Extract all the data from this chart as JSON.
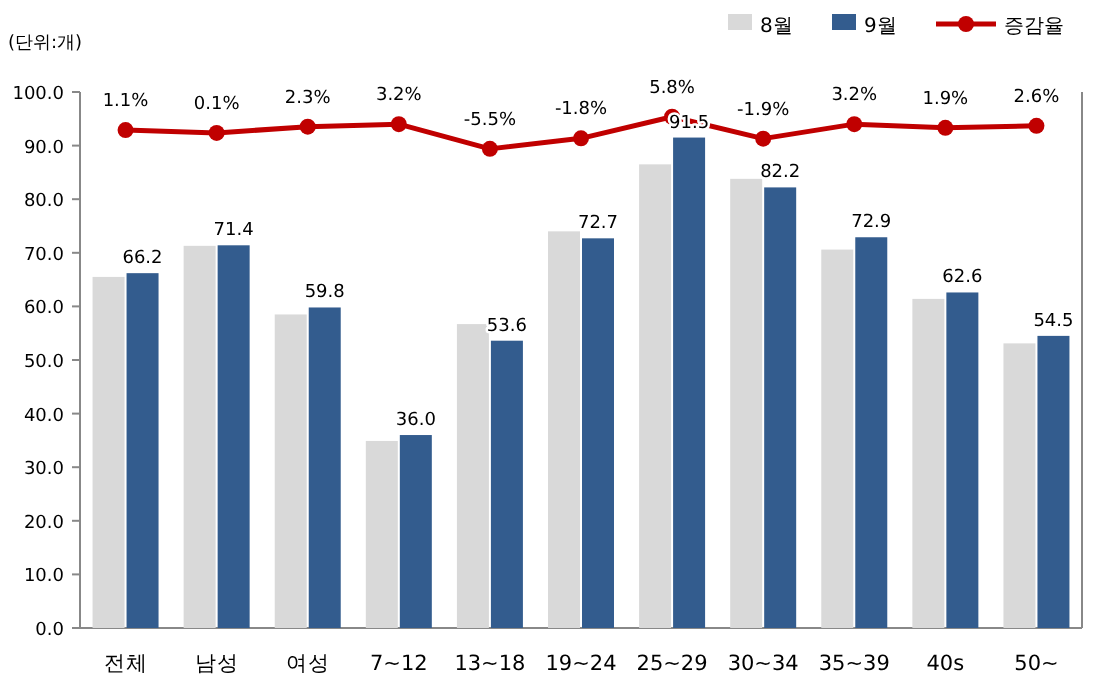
{
  "chart_data": {
    "type": "bar",
    "ylabel": "(단위:개)",
    "categories": [
      "전체",
      "남성",
      "여성",
      "7~12",
      "13~18",
      "19~24",
      "25~29",
      "30~34",
      "35~39",
      "40s",
      "50~"
    ],
    "series": [
      {
        "name": "8월",
        "color": "#d9d9d9",
        "values": [
          65.5,
          71.3,
          58.5,
          34.9,
          56.7,
          74.0,
          86.5,
          83.8,
          70.6,
          61.4,
          53.1
        ]
      },
      {
        "name": "9월",
        "color": "#335c8e",
        "values": [
          66.2,
          71.4,
          59.8,
          36.0,
          53.6,
          72.7,
          91.5,
          82.2,
          72.9,
          62.6,
          54.5
        ],
        "value_labels": [
          "66.2",
          "71.4",
          "59.8",
          "36.0",
          "53.6",
          "72.7",
          "91.5",
          "82.2",
          "72.9",
          "62.6",
          "54.5"
        ]
      },
      {
        "name": "증감율",
        "type": "line",
        "axis": "y2",
        "color": "#c00000",
        "marker": "circle",
        "values": [
          1.1,
          0.1,
          2.3,
          3.2,
          -5.5,
          -1.8,
          5.8,
          -1.9,
          3.2,
          1.9,
          2.6
        ],
        "value_labels": [
          "1.1%",
          "0.1%",
          "2.3%",
          "3.2%",
          "-5.5%",
          "-1.8%",
          "5.8%",
          "-1.9%",
          "3.2%",
          "1.9%",
          "2.6%"
        ]
      }
    ],
    "ylim": [
      0,
      100
    ],
    "yticks": [
      {
        "value": 0,
        "label": "0.0"
      },
      {
        "value": 10,
        "label": "10.0"
      },
      {
        "value": 20,
        "label": "20.0"
      },
      {
        "value": 30,
        "label": "30.0"
      },
      {
        "value": 40,
        "label": "40.0"
      },
      {
        "value": 50,
        "label": "50.0"
      },
      {
        "value": 60,
        "label": "60.0"
      },
      {
        "value": 70,
        "label": "70.0"
      },
      {
        "value": 80,
        "label": "80.0"
      },
      {
        "value": 90,
        "label": "90.0"
      },
      {
        "value": 100,
        "label": "100.0"
      }
    ],
    "y2lim": [
      -174,
      14.5
    ],
    "legend": "top right"
  }
}
